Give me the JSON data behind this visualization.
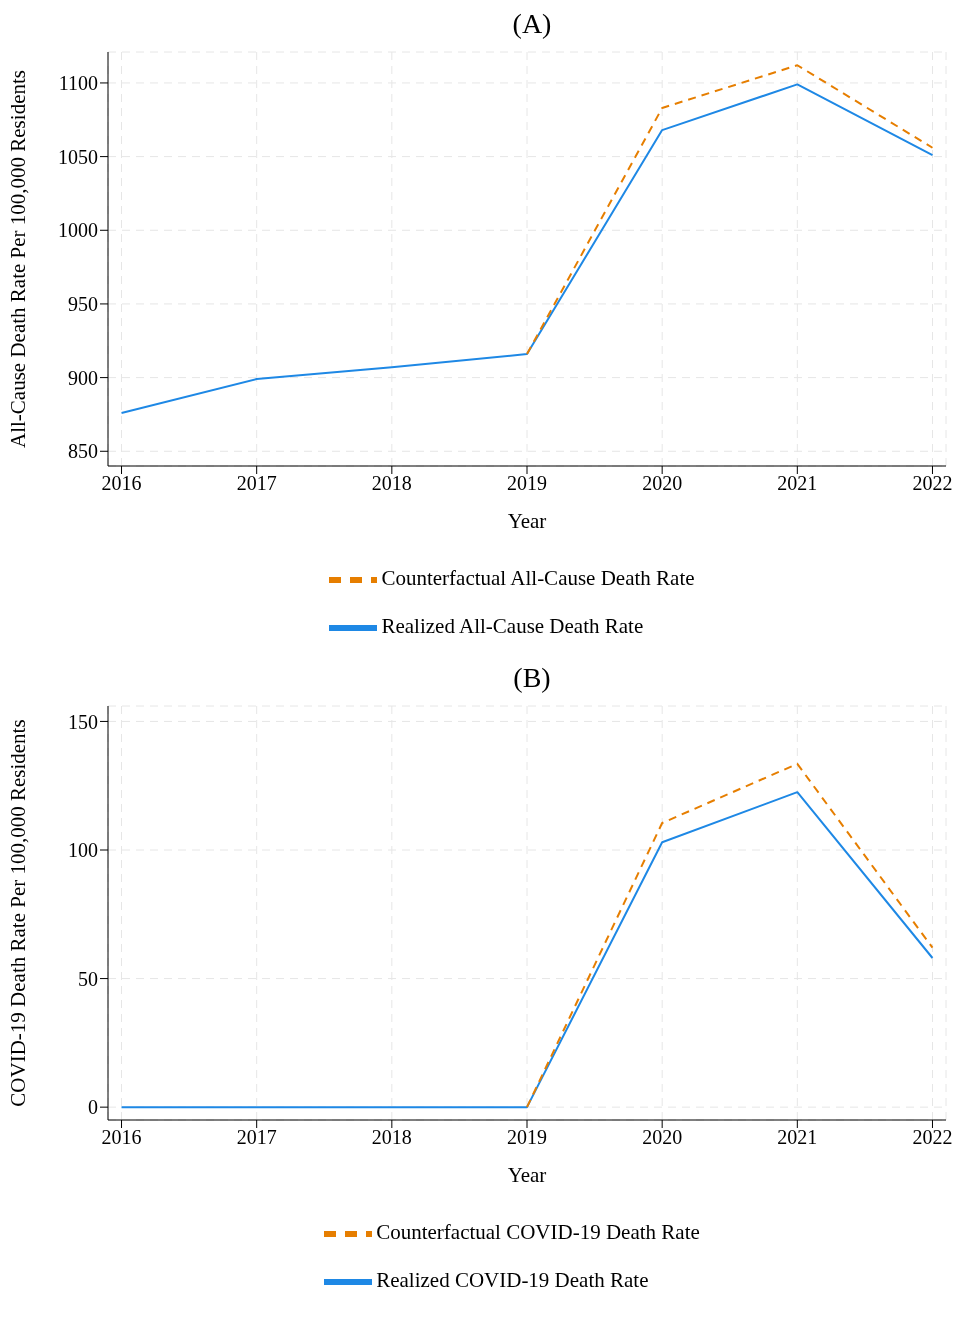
{
  "chart_data": [
    {
      "type": "line",
      "title": "(A)",
      "xlabel": "Year",
      "ylabel": "All-Cause Death Rate Per 100,000 Residents",
      "x": [
        2016,
        2017,
        2018,
        2019,
        2020,
        2021,
        2022
      ],
      "series": [
        {
          "name": "Realized All-Cause Death Rate",
          "color": "#1e88e5",
          "line_style": "solid",
          "values": [
            876,
            899,
            907,
            916,
            1068,
            1099,
            1051
          ]
        },
        {
          "name": "Counterfactual All-Cause Death Rate",
          "color": "#e67e00",
          "line_style": "dashed",
          "values": [
            null,
            null,
            null,
            916,
            1083,
            1112,
            1056
          ]
        }
      ],
      "xlim": [
        2015.9,
        2022.1
      ],
      "xticks": [
        2016,
        2017,
        2018,
        2019,
        2020,
        2021,
        2022
      ],
      "ylim": [
        840,
        1121
      ],
      "yticks": [
        850,
        900,
        950,
        1000,
        1050,
        1100
      ],
      "grid": true,
      "legend": "bottom",
      "marker": "none"
    },
    {
      "type": "line",
      "title": "(B)",
      "xlabel": "Year",
      "ylabel": "COVID-19 Death Rate Per 100,000 Residents",
      "x": [
        2016,
        2017,
        2018,
        2019,
        2020,
        2021,
        2022
      ],
      "series": [
        {
          "name": "Realized COVID-19 Death Rate",
          "color": "#1e88e5",
          "line_style": "solid",
          "values": [
            0,
            0,
            0,
            0,
            103,
            122.5,
            58
          ]
        },
        {
          "name": "Counterfactual COVID-19 Death Rate",
          "color": "#e67e00",
          "line_style": "dashed",
          "values": [
            null,
            null,
            null,
            0,
            110.5,
            133.5,
            62
          ]
        }
      ],
      "xlim": [
        2015.9,
        2022.1
      ],
      "xticks": [
        2016,
        2017,
        2018,
        2019,
        2020,
        2021,
        2022
      ],
      "ylim": [
        -5,
        156
      ],
      "yticks": [
        0,
        50,
        100,
        150
      ],
      "grid": true,
      "legend": "bottom",
      "marker": "none"
    }
  ]
}
